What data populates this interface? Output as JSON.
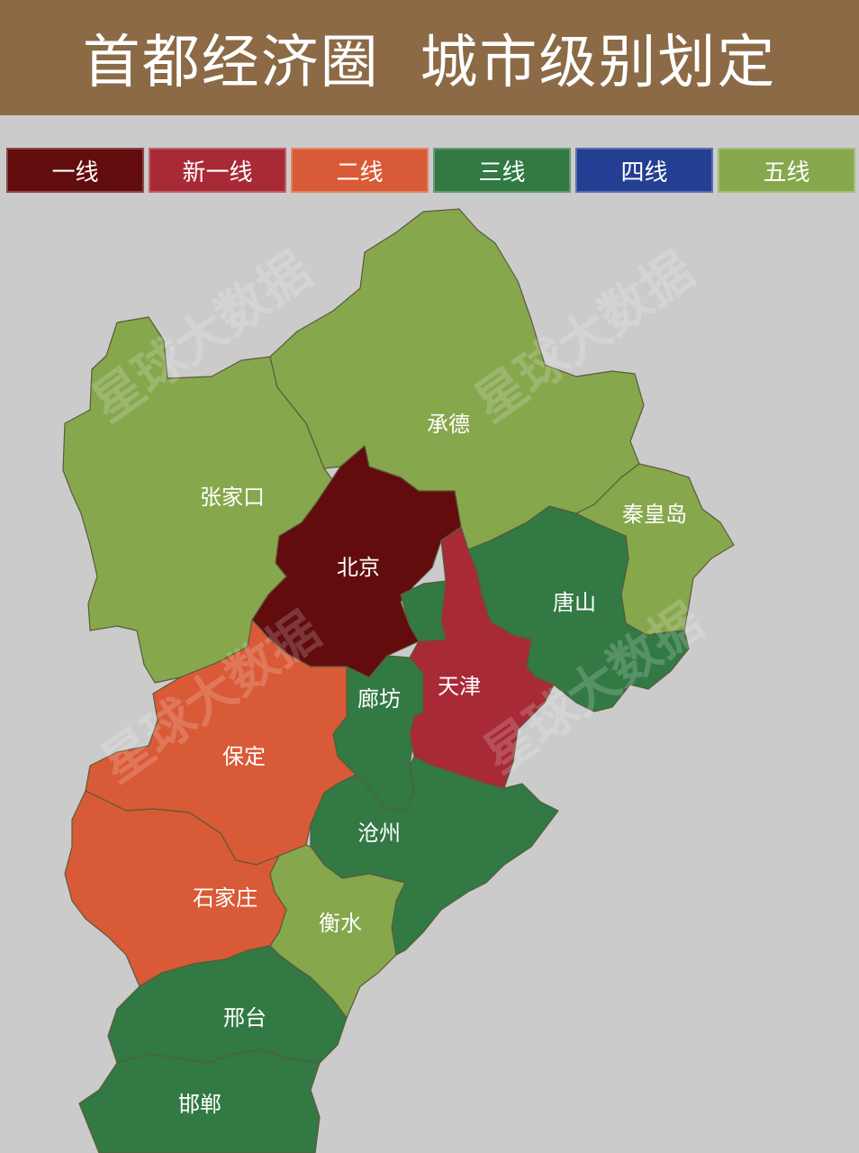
{
  "title": "首都经济圈  城市级别划定",
  "tiers": [
    {
      "id": "tier1",
      "label": "一线",
      "color": "#620c0e"
    },
    {
      "id": "tier_new1",
      "label": "新一线",
      "color": "#a82a37"
    },
    {
      "id": "tier2",
      "label": "二线",
      "color": "#d95a36"
    },
    {
      "id": "tier3",
      "label": "三线",
      "color": "#327944"
    },
    {
      "id": "tier4",
      "label": "四线",
      "color": "#233e92"
    },
    {
      "id": "tier5",
      "label": "五线",
      "color": "#87a74d"
    }
  ],
  "cities": [
    {
      "id": "zhangjiakou",
      "name": "张家口",
      "tier": "tier5"
    },
    {
      "id": "chengde",
      "name": "承德",
      "tier": "tier5"
    },
    {
      "id": "qinhuangdao",
      "name": "秦皇岛",
      "tier": "tier5"
    },
    {
      "id": "beijing",
      "name": "北京",
      "tier": "tier1"
    },
    {
      "id": "tangshan",
      "name": "唐山",
      "tier": "tier3"
    },
    {
      "id": "tianjin",
      "name": "天津",
      "tier": "tier_new1"
    },
    {
      "id": "langfang",
      "name": "廊坊",
      "tier": "tier3"
    },
    {
      "id": "baoding",
      "name": "保定",
      "tier": "tier2"
    },
    {
      "id": "cangzhou",
      "name": "沧州",
      "tier": "tier3"
    },
    {
      "id": "shijiazhuang",
      "name": "石家庄",
      "tier": "tier2"
    },
    {
      "id": "hengshui",
      "name": "衡水",
      "tier": "tier5"
    },
    {
      "id": "xingtai",
      "name": "邢台",
      "tier": "tier3"
    },
    {
      "id": "handan",
      "name": "邯郸",
      "tier": "tier3"
    }
  ],
  "watermark": "星球大数据"
}
